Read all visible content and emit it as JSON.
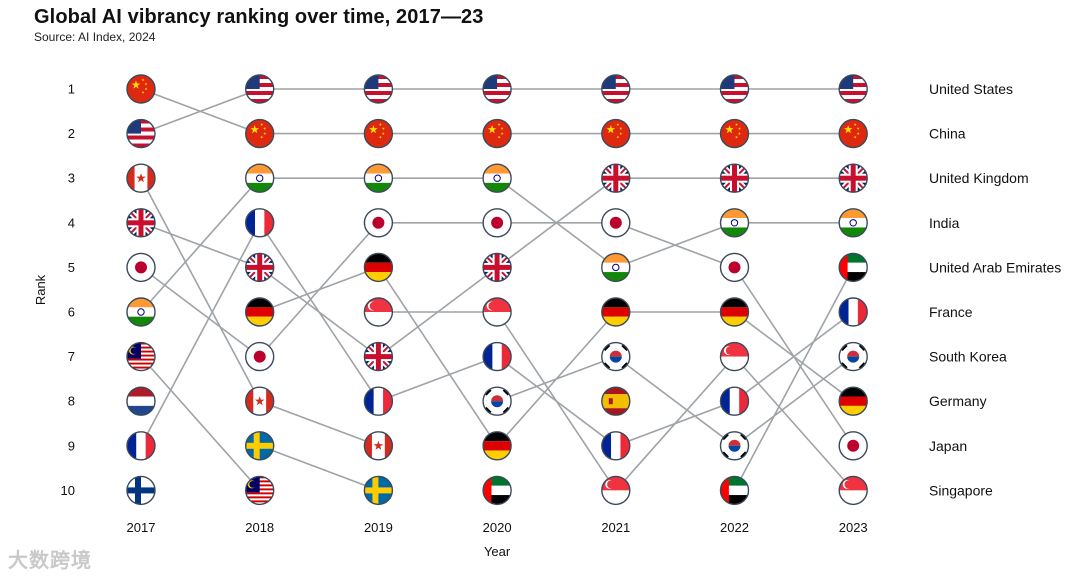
{
  "chart_data": {
    "type": "bump",
    "title": "Global AI vibrancy ranking over time, 2017—23",
    "subtitle": "Source: AI Index, 2024",
    "xlabel": "Year",
    "ylabel": "Rank",
    "years": [
      "2017",
      "2018",
      "2019",
      "2020",
      "2021",
      "2022",
      "2023"
    ],
    "rank_ticks": [
      "1",
      "2",
      "3",
      "4",
      "5",
      "6",
      "7",
      "8",
      "9",
      "10"
    ],
    "end_labels": [
      "United States",
      "China",
      "United Kingdom",
      "India",
      "United Arab Emirates",
      "France",
      "South Korea",
      "Germany",
      "Japan",
      "Singapore"
    ],
    "series": [
      {
        "name": "United States",
        "flag": "us",
        "ranks": [
          2,
          1,
          1,
          1,
          1,
          1,
          1
        ]
      },
      {
        "name": "China",
        "flag": "cn",
        "ranks": [
          1,
          2,
          2,
          2,
          2,
          2,
          2
        ]
      },
      {
        "name": "United Kingdom",
        "flag": "gb",
        "ranks": [
          4,
          5,
          7,
          5,
          3,
          3,
          3
        ]
      },
      {
        "name": "India",
        "flag": "in",
        "ranks": [
          6,
          3,
          3,
          3,
          5,
          4,
          4
        ]
      },
      {
        "name": "United Arab Emirates",
        "flag": "ae",
        "ranks": [
          null,
          null,
          null,
          10,
          null,
          10,
          5
        ]
      },
      {
        "name": "France",
        "flag": "fr",
        "ranks": [
          9,
          4,
          8,
          7,
          9,
          8,
          6
        ]
      },
      {
        "name": "South Korea",
        "flag": "kr",
        "ranks": [
          null,
          null,
          null,
          8,
          7,
          9,
          7
        ]
      },
      {
        "name": "Germany",
        "flag": "de",
        "ranks": [
          null,
          6,
          5,
          9,
          6,
          6,
          8
        ]
      },
      {
        "name": "Japan",
        "flag": "jp",
        "ranks": [
          5,
          7,
          4,
          4,
          4,
          5,
          9
        ]
      },
      {
        "name": "Singapore",
        "flag": "sg",
        "ranks": [
          null,
          null,
          6,
          6,
          10,
          7,
          10
        ]
      },
      {
        "name": "Canada",
        "flag": "ca",
        "ranks": [
          3,
          8,
          9,
          null,
          null,
          null,
          null
        ]
      },
      {
        "name": "Malaysia",
        "flag": "my",
        "ranks": [
          7,
          10,
          null,
          null,
          null,
          null,
          null
        ]
      },
      {
        "name": "Netherlands",
        "flag": "nl",
        "ranks": [
          8,
          null,
          null,
          null,
          null,
          null,
          null
        ]
      },
      {
        "name": "Finland",
        "flag": "fi",
        "ranks": [
          10,
          null,
          null,
          null,
          null,
          null,
          null
        ]
      },
      {
        "name": "Sweden",
        "flag": "se",
        "ranks": [
          null,
          9,
          10,
          null,
          null,
          null,
          null
        ]
      },
      {
        "name": "Spain",
        "flag": "es",
        "ranks": [
          null,
          null,
          null,
          null,
          8,
          null,
          null
        ]
      }
    ]
  },
  "watermark": "大数跨境",
  "colors": {
    "line": "#9ea3a8",
    "stroke": "#3b4a5a"
  }
}
